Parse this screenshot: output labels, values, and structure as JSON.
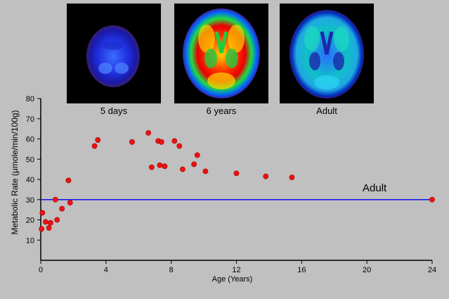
{
  "scans": [
    {
      "label": "5 days",
      "icon": "brain-pet-scan-5-days"
    },
    {
      "label": "6 years",
      "icon": "brain-pet-scan-6-years"
    },
    {
      "label": "Adult",
      "icon": "brain-pet-scan-adult"
    }
  ],
  "chart_data": {
    "type": "scatter",
    "xlabel": "Age (Years)",
    "ylabel": "Metabolic Rate (μmole/min/100g)",
    "xlim": [
      0,
      24
    ],
    "ylim": [
      0,
      80
    ],
    "xticks": [
      0,
      4,
      8,
      12,
      16,
      20,
      24
    ],
    "yticks": [
      10,
      20,
      30,
      40,
      50,
      60,
      70,
      80
    ],
    "grid": false,
    "marker_color": "#ee1111",
    "reference_line": {
      "y": 30,
      "label": "Adult",
      "color": "#1010ee"
    },
    "points": [
      {
        "x": 0.05,
        "y": 15.5
      },
      {
        "x": 0.1,
        "y": 23.5
      },
      {
        "x": 0.3,
        "y": 19
      },
      {
        "x": 0.5,
        "y": 16
      },
      {
        "x": 0.6,
        "y": 18.5
      },
      {
        "x": 0.9,
        "y": 30
      },
      {
        "x": 1.0,
        "y": 20
      },
      {
        "x": 1.3,
        "y": 25.5
      },
      {
        "x": 1.7,
        "y": 39.5
      },
      {
        "x": 1.8,
        "y": 28.5
      },
      {
        "x": 3.3,
        "y": 56.5
      },
      {
        "x": 3.5,
        "y": 59.5
      },
      {
        "x": 5.6,
        "y": 58.5
      },
      {
        "x": 6.6,
        "y": 63
      },
      {
        "x": 6.8,
        "y": 46
      },
      {
        "x": 7.2,
        "y": 59
      },
      {
        "x": 7.3,
        "y": 47
      },
      {
        "x": 7.4,
        "y": 58.5
      },
      {
        "x": 7.6,
        "y": 46.5
      },
      {
        "x": 8.2,
        "y": 59
      },
      {
        "x": 8.5,
        "y": 56.5
      },
      {
        "x": 8.7,
        "y": 45
      },
      {
        "x": 9.4,
        "y": 47.5
      },
      {
        "x": 9.6,
        "y": 52
      },
      {
        "x": 10.1,
        "y": 44
      },
      {
        "x": 12.0,
        "y": 43
      },
      {
        "x": 13.8,
        "y": 41.5
      },
      {
        "x": 15.4,
        "y": 41
      },
      {
        "x": 24.0,
        "y": 30
      }
    ]
  }
}
